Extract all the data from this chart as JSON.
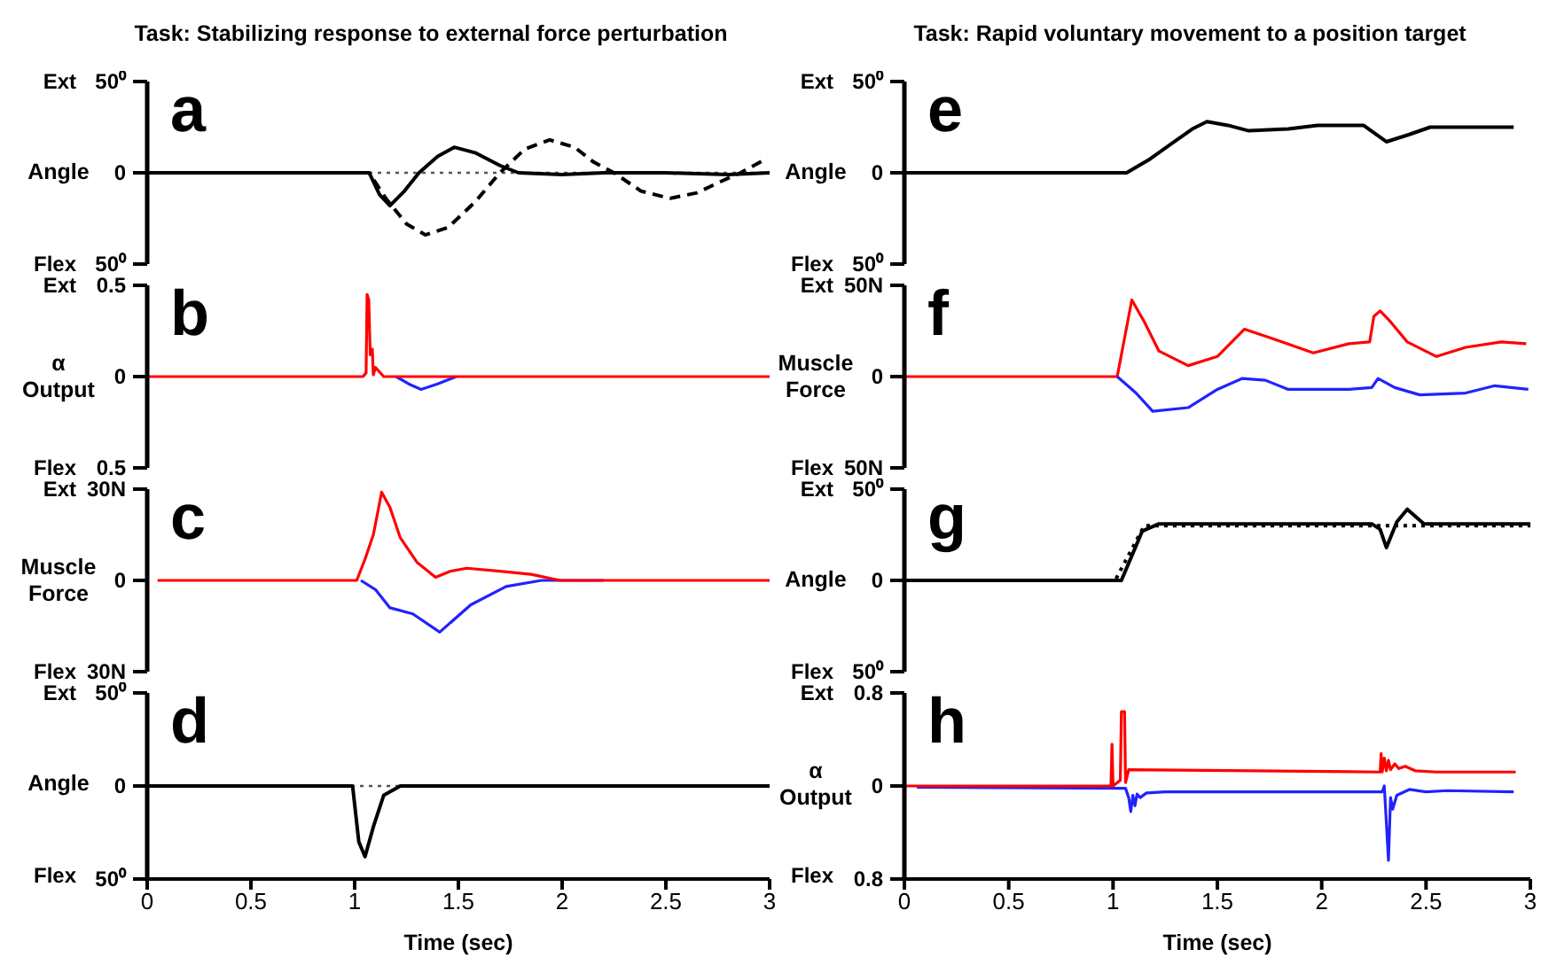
{
  "chart_data": [
    {
      "type": "line",
      "title": "Task: Stabilizing response to external force perturbation",
      "ylabel": "Angle",
      "annotations": [
        "a",
        "Ext",
        "Flex"
      ],
      "xlim": [
        0,
        3
      ],
      "ylim": [
        -50,
        50
      ],
      "yticks": [
        {
          "value": -50,
          "label": "50⁰"
        },
        0,
        {
          "value": 50,
          "label": "50⁰"
        }
      ],
      "tick_labels": "y",
      "ref_lines": [
        {
          "axis": "y",
          "value": 0,
          "color": "#555555",
          "line_style": "dotted"
        }
      ],
      "series": [
        {
          "color": "#000000",
          "x": [
            0,
            1.07,
            1.12,
            1.17,
            1.24,
            1.31,
            1.4,
            1.48,
            1.58,
            1.7,
            1.79,
            2.0,
            2.2,
            2.5,
            2.8,
            3.0
          ],
          "values": [
            0,
            0,
            -12,
            -18,
            -10,
            0,
            9,
            14,
            11,
            4,
            0,
            -1,
            0,
            0,
            -1,
            0
          ]
        },
        {
          "color": "#000000",
          "line_style": "dashed",
          "x": [
            0,
            1.07,
            1.15,
            1.25,
            1.34,
            1.45,
            1.58,
            1.7,
            1.82,
            1.94,
            2.06,
            2.15,
            2.25,
            2.38,
            2.52,
            2.65,
            2.76,
            2.86,
            2.99
          ],
          "values": [
            0,
            0,
            -14,
            -28,
            -34,
            -30,
            -16,
            0,
            13,
            18,
            14,
            6,
            0,
            -10,
            -14,
            -11,
            -5,
            0,
            8
          ]
        }
      ]
    },
    {
      "type": "line",
      "ylabel": "α Output",
      "annotations": [
        "b",
        "Ext",
        "Flex"
      ],
      "xlim": [
        0,
        3
      ],
      "ylim": [
        -0.5,
        0.5
      ],
      "yticks": [
        {
          "value": -0.5,
          "label": "0.5"
        },
        0,
        0.5
      ],
      "tick_labels": "y",
      "series": [
        {
          "color": "#2222ff",
          "x": [
            1.2,
            1.26,
            1.32,
            1.4,
            1.49
          ],
          "values": [
            0,
            -0.04,
            -0.07,
            -0.04,
            0
          ]
        },
        {
          "color": "#ff0000",
          "x": [
            0,
            1.04,
            1.055,
            1.06,
            1.068,
            1.075,
            1.085,
            1.09,
            1.1,
            1.14,
            3.0
          ],
          "values": [
            0,
            0,
            0.02,
            0.45,
            0.42,
            0.12,
            0.15,
            0.01,
            0.05,
            0,
            0
          ]
        }
      ]
    },
    {
      "type": "line",
      "ylabel": "Muscle Force",
      "annotations": [
        "c",
        "Ext",
        "Flex"
      ],
      "xlim": [
        0,
        3
      ],
      "ylim": [
        -30,
        30
      ],
      "yticks": [
        {
          "value": -30,
          "label": "30N"
        },
        0,
        {
          "value": 30,
          "label": "30N"
        }
      ],
      "tick_labels": "y",
      "series": [
        {
          "color": "#2222ff",
          "x": [
            1.03,
            1.1,
            1.17,
            1.28,
            1.41,
            1.56,
            1.73,
            1.9,
            2.2
          ],
          "values": [
            0,
            -3,
            -9,
            -11,
            -17,
            -8,
            -2,
            0,
            0
          ]
        },
        {
          "color": "#ff0000",
          "x": [
            0.05,
            1.01,
            1.05,
            1.09,
            1.13,
            1.17,
            1.22,
            1.3,
            1.39,
            1.46,
            1.54,
            1.7,
            1.85,
            1.99,
            3.0
          ],
          "values": [
            0,
            0,
            7,
            15,
            29,
            24,
            14,
            6,
            1,
            3,
            4,
            3,
            2,
            0,
            0
          ]
        }
      ]
    },
    {
      "type": "line",
      "ylabel": "Angle",
      "xlabel": "Time (sec)",
      "annotations": [
        "d",
        "Ext",
        "Flex"
      ],
      "xlim": [
        0,
        3
      ],
      "xticks": [
        0,
        0.5,
        1,
        1.5,
        2,
        2.5,
        3
      ],
      "ylim": [
        -50,
        50
      ],
      "yticks": [
        {
          "value": -50,
          "label": "50⁰"
        },
        0,
        {
          "value": 50,
          "label": "50⁰"
        }
      ],
      "ref_lines": [
        {
          "axis": "y",
          "value": 0,
          "color": "#555555",
          "line_style": "dotted"
        }
      ],
      "series": [
        {
          "color": "#000000",
          "x": [
            0,
            0.99,
            1.02,
            1.05,
            1.09,
            1.14,
            1.22,
            3.0
          ],
          "values": [
            0,
            0,
            -30,
            -38,
            -22,
            -5,
            0,
            0
          ]
        }
      ]
    },
    {
      "type": "line",
      "title": "Task: Rapid voluntary movement to a position target",
      "ylabel": "Angle",
      "annotations": [
        "e",
        "Ext",
        "Flex"
      ],
      "xlim": [
        0,
        3
      ],
      "ylim": [
        -50,
        50
      ],
      "yticks": [
        {
          "value": -50,
          "label": "50⁰"
        },
        0,
        {
          "value": 50,
          "label": "50⁰"
        }
      ],
      "tick_labels": "y",
      "series": [
        {
          "color": "#000000",
          "x": [
            0,
            1.065,
            1.17,
            1.28,
            1.38,
            1.45,
            1.55,
            1.65,
            1.84,
            1.98,
            2.2,
            2.31,
            2.42,
            2.52,
            2.83,
            2.92
          ],
          "values": [
            0,
            0,
            7,
            16,
            24,
            28,
            26,
            23,
            24,
            26,
            26,
            17,
            21,
            25,
            25,
            25
          ]
        }
      ]
    },
    {
      "type": "line",
      "ylabel": "Muscle Force",
      "annotations": [
        "f",
        "Ext",
        "Flex"
      ],
      "xlim": [
        0,
        3
      ],
      "ylim": [
        -50,
        50
      ],
      "yticks": [
        {
          "value": -50,
          "label": "50N"
        },
        0,
        {
          "value": 50,
          "label": "50N"
        }
      ],
      "tick_labels": "y",
      "series": [
        {
          "color": "#ff0000",
          "x": [
            0,
            1.02,
            1.09,
            1.15,
            1.22,
            1.36,
            1.5,
            1.63,
            1.76,
            1.96,
            2.13,
            2.23,
            2.25,
            2.28,
            2.33,
            2.41,
            2.55,
            2.69,
            2.86,
            2.98
          ],
          "values": [
            0,
            0,
            42,
            30,
            14,
            6,
            11,
            26,
            21,
            13,
            18,
            19,
            33,
            36,
            30,
            19,
            11,
            16,
            19,
            18
          ]
        },
        {
          "color": "#2222ff",
          "x": [
            1.02,
            1.11,
            1.19,
            1.36,
            1.5,
            1.62,
            1.73,
            1.84,
            2.13,
            2.24,
            2.27,
            2.35,
            2.47,
            2.69,
            2.83,
            2.99
          ],
          "values": [
            0,
            -9,
            -19,
            -17,
            -7,
            -1,
            -2,
            -7,
            -7,
            -6,
            -1,
            -6,
            -10,
            -9,
            -5,
            -7
          ]
        }
      ]
    },
    {
      "type": "line",
      "ylabel": "Angle",
      "annotations": [
        "g",
        "Ext",
        "Flex"
      ],
      "xlim": [
        0,
        3
      ],
      "ylim": [
        -50,
        50
      ],
      "yticks": [
        {
          "value": -50,
          "label": "50⁰"
        },
        0,
        {
          "value": 50,
          "label": "50⁰"
        }
      ],
      "tick_labels": "y",
      "series": [
        {
          "color": "#000000",
          "line_style": "dotted",
          "x": [
            0,
            1.01,
            1.15,
            3.0
          ],
          "values": [
            0,
            0,
            30,
            30
          ]
        },
        {
          "color": "#000000",
          "x": [
            0,
            1.04,
            1.14,
            1.22,
            2.24,
            2.28,
            2.31,
            2.36,
            2.41,
            2.49,
            3.0
          ],
          "values": [
            0,
            0,
            27,
            31,
            31,
            28,
            18,
            32,
            39,
            31,
            31
          ]
        }
      ]
    },
    {
      "type": "line",
      "ylabel": "α Output",
      "xlabel": "Time (sec)",
      "annotations": [
        "h",
        "Ext",
        "Flex"
      ],
      "xlim": [
        0,
        3
      ],
      "xticks": [
        0,
        0.5,
        1,
        1.5,
        2,
        2.5,
        3
      ],
      "ylim": [
        -0.8,
        0.8
      ],
      "yticks": [
        {
          "value": -0.8,
          "label": "0.8"
        },
        0,
        0.8
      ],
      "series": [
        {
          "color": "#2222ff",
          "x": [
            0.06,
            1.06,
            1.075,
            1.085,
            1.095,
            1.105,
            1.115,
            1.13,
            1.16,
            1.25,
            2.29,
            2.3,
            2.32,
            2.33,
            2.34,
            2.36,
            2.42,
            2.5,
            2.6,
            2.92
          ],
          "values": [
            -0.01,
            -0.02,
            -0.1,
            -0.22,
            -0.08,
            -0.17,
            -0.07,
            -0.1,
            -0.06,
            -0.05,
            -0.05,
            0,
            -0.64,
            -0.1,
            -0.2,
            -0.08,
            -0.03,
            -0.05,
            -0.04,
            -0.05
          ]
        },
        {
          "color": "#ff0000",
          "x": [
            0,
            0.99,
            0.995,
            1.0,
            1.035,
            1.04,
            1.055,
            1.06,
            1.075,
            2.28,
            2.285,
            2.29,
            2.3,
            2.31,
            2.32,
            2.33,
            2.35,
            2.37,
            2.4,
            2.45,
            2.55,
            2.93
          ],
          "values": [
            0,
            0,
            0.36,
            0,
            0.05,
            0.64,
            0.64,
            0.03,
            0.14,
            0.12,
            0.28,
            0.12,
            0.24,
            0.13,
            0.22,
            0.14,
            0.19,
            0.15,
            0.17,
            0.13,
            0.12,
            0.12
          ]
        }
      ]
    }
  ]
}
